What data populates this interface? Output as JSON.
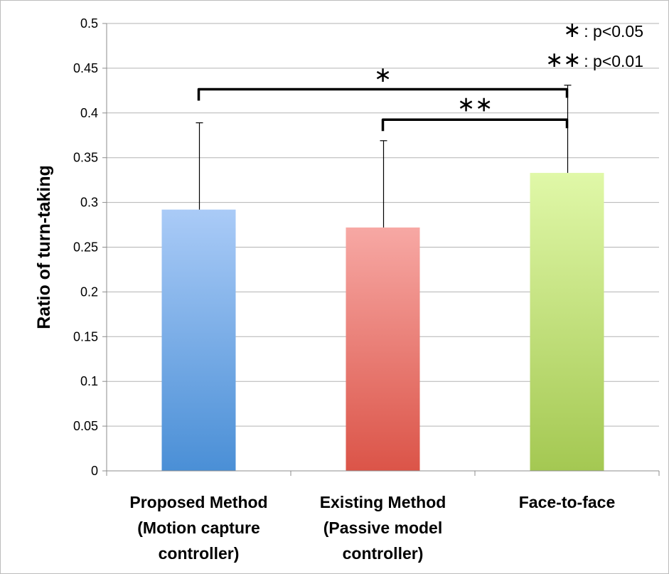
{
  "chart_data": {
    "type": "bar",
    "title": "",
    "xlabel": "",
    "ylabel": "Ratio of turn-taking",
    "ylim": [
      0,
      0.5
    ],
    "yticks": [
      "0",
      "0.05",
      "0.1",
      "0.15",
      "0.2",
      "0.25",
      "0.3",
      "0.35",
      "0.4",
      "0.45",
      "0.5"
    ],
    "grid": true,
    "categories": [
      [
        "Proposed Method",
        "(Motion capture",
        "controller)"
      ],
      [
        "Existing Method",
        "(Passive model",
        "controller)"
      ],
      [
        "Face-to-face"
      ]
    ],
    "values": [
      0.292,
      0.272,
      0.333
    ],
    "error_upper": [
      0.389,
      0.369,
      0.431
    ],
    "colors": [
      [
        "#aacbf7",
        "#4a8fd6"
      ],
      [
        "#f7a8a4",
        "#db5448"
      ],
      [
        "#e0f8a8",
        "#a4c852"
      ]
    ],
    "significance": [
      {
        "from": 0,
        "to": 2,
        "label": "∗"
      },
      {
        "from": 1,
        "to": 2,
        "label": "∗∗"
      }
    ],
    "legend": [
      {
        "symbol": "∗",
        "text": ": p<0.05"
      },
      {
        "symbol": "∗∗",
        "text": ": p<0.01"
      }
    ],
    "legend_position": "top-right"
  }
}
